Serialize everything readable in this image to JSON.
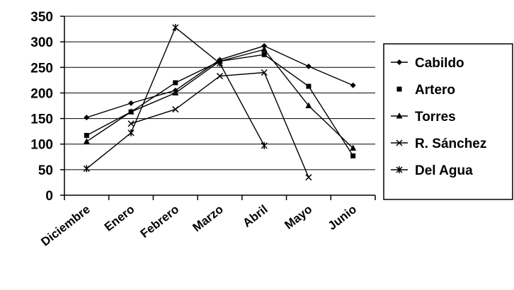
{
  "chart_data": {
    "type": "line",
    "title": "",
    "xlabel": "",
    "ylabel": "",
    "categories": [
      "Diciembre",
      "Enero",
      "Febrero",
      "Marzo",
      "Abril",
      "Mayo",
      "Junio"
    ],
    "ylim": [
      0,
      350
    ],
    "yticks": [
      "0",
      "50",
      "100",
      "150",
      "200",
      "250",
      "300",
      "350"
    ],
    "grid": true,
    "legend_position": "right",
    "series": [
      {
        "name": "Cabildo",
        "marker": "diamond",
        "values": [
          152,
          180,
          205,
          265,
          292,
          252,
          215
        ]
      },
      {
        "name": "Artero",
        "marker": "square",
        "values": [
          117,
          163,
          220,
          262,
          275,
          213,
          77
        ]
      },
      {
        "name": "Torres",
        "marker": "triangle",
        "values": [
          105,
          163,
          200,
          262,
          285,
          175,
          92
        ]
      },
      {
        "name": "R. Sánchez",
        "marker": "x",
        "values": [
          null,
          140,
          168,
          233,
          240,
          35,
          null
        ]
      },
      {
        "name": "Del Agua",
        "marker": "star",
        "values": [
          52,
          122,
          328,
          258,
          97,
          null,
          null
        ]
      }
    ]
  }
}
